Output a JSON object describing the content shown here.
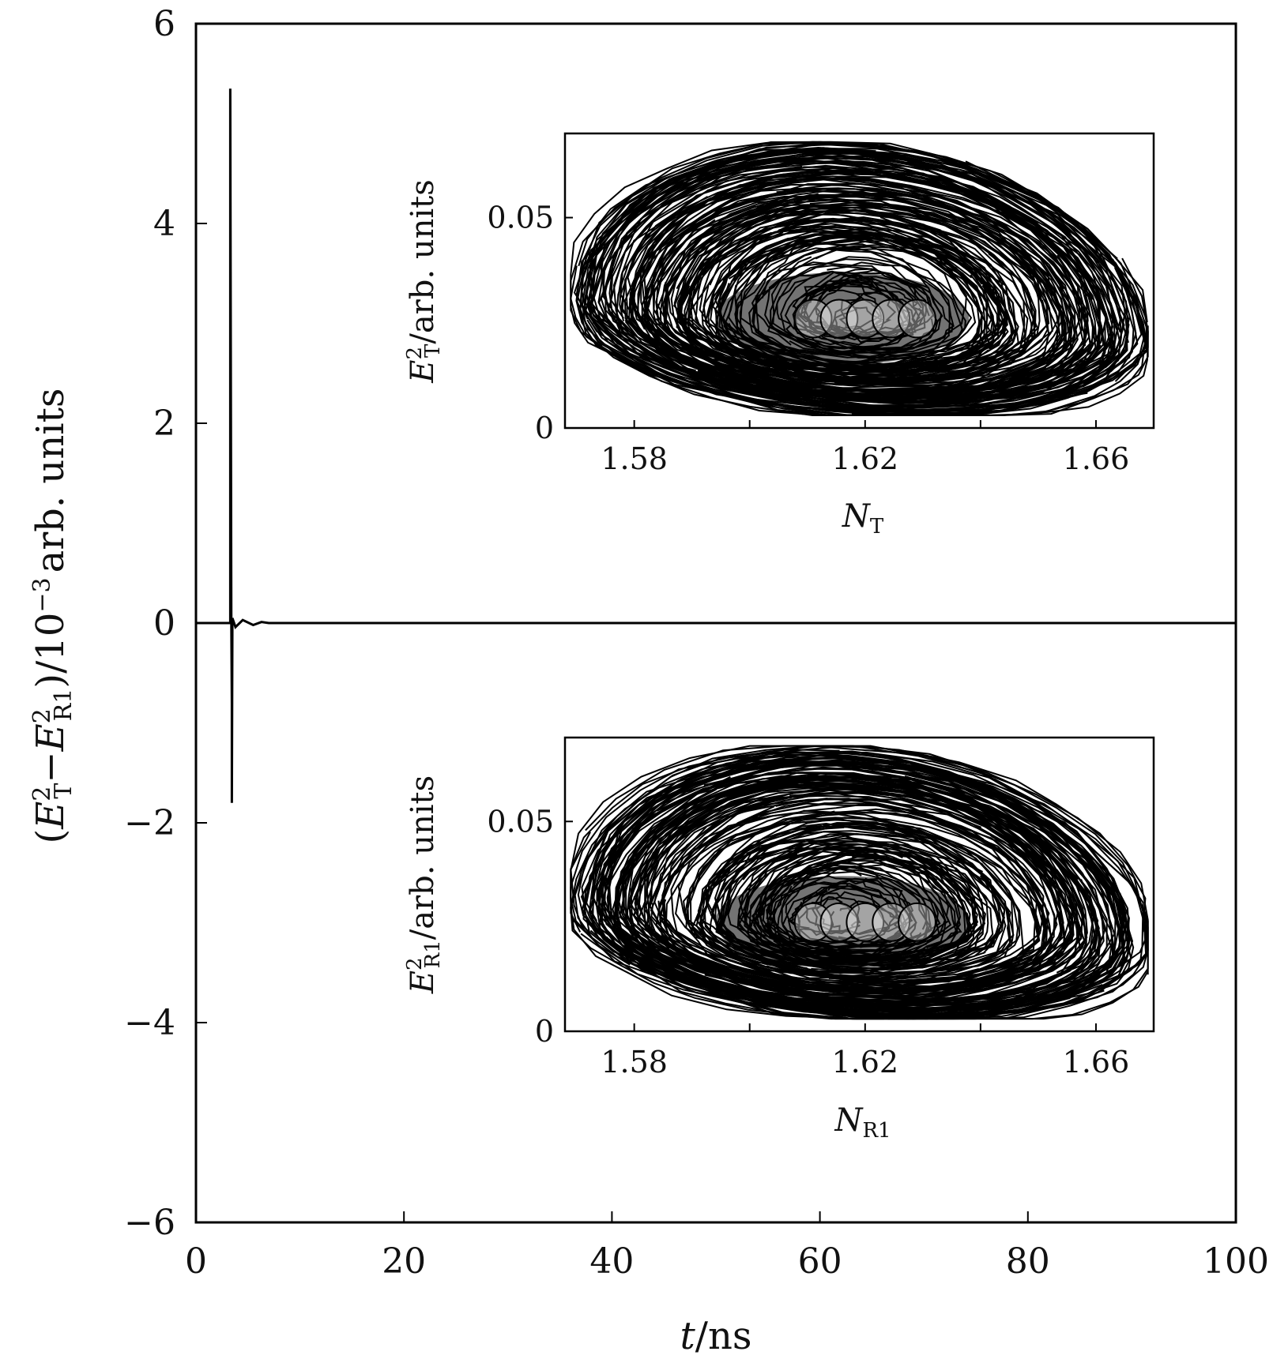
{
  "chart_data": [
    {
      "type": "line",
      "role": "main",
      "xlabel": {
        "var": "t",
        "unit": "/ns"
      },
      "ylabel": {
        "prefix": "(",
        "e": "E",
        "sup": "2",
        "subT": "T",
        "minus": "−",
        "subR": "R1",
        "suffix": ")/10",
        "exp": "−3",
        "unit": "arb. units"
      },
      "xlim": [
        0,
        100
      ],
      "ylim": [
        -6,
        6
      ],
      "x_ticks": [
        0,
        20,
        40,
        60,
        80,
        100
      ],
      "x_tick_labels": [
        "0",
        "20",
        "40",
        "60",
        "80",
        "100"
      ],
      "y_ticks": [
        -6,
        -4,
        -2,
        0,
        2,
        4,
        6
      ],
      "y_tick_labels": [
        "−6",
        "−4",
        "−2",
        "0",
        "2",
        "4",
        "6"
      ],
      "series": [
        {
          "name": "(E_T^2 - E_R1^2)",
          "x": [
            0,
            3.3,
            3.3,
            3.4,
            3.45,
            3.45,
            3.5,
            3.8,
            4.5,
            5.5,
            6.3,
            7.0,
            100
          ],
          "y": [
            0,
            0,
            5.35,
            0.1,
            -0.8,
            -1.8,
            0.05,
            -0.04,
            0.03,
            -0.02,
            0.01,
            0,
            0
          ]
        }
      ]
    },
    {
      "type": "line",
      "role": "inset-top",
      "xlabel": {
        "var": "N",
        "sub": "T"
      },
      "ylabel": {
        "e": "E",
        "sup": "2",
        "sub": "T",
        "unit": "/arb. units"
      },
      "xlim": [
        1.568,
        1.67
      ],
      "ylim": [
        0,
        0.07
      ],
      "x_ticks": [
        1.58,
        1.62,
        1.66
      ],
      "x_tick_labels": [
        "1.58",
        "1.62",
        "1.66"
      ],
      "y_ticks": [
        0,
        0.05
      ],
      "y_tick_labels": [
        "0",
        "0.05"
      ],
      "attractor": {
        "center_n": 1.618,
        "center_e": 0.026,
        "min_n": 1.569,
        "max_n": 1.669,
        "min_e": 0.003,
        "max_e": 0.068
      }
    },
    {
      "type": "line",
      "role": "inset-bottom",
      "xlabel": {
        "var": "N",
        "sub": "R1"
      },
      "ylabel": {
        "e": "E",
        "sup": "2",
        "sub": "R1",
        "unit": "/arb. units"
      },
      "xlim": [
        1.568,
        1.67
      ],
      "ylim": [
        0,
        0.07
      ],
      "x_ticks": [
        1.58,
        1.62,
        1.66
      ],
      "x_tick_labels": [
        "1.58",
        "1.62",
        "1.66"
      ],
      "y_ticks": [
        0,
        0.05
      ],
      "y_tick_labels": [
        "0",
        "0.05"
      ],
      "attractor": {
        "center_n": 1.618,
        "center_e": 0.026,
        "min_n": 1.569,
        "max_n": 1.669,
        "min_e": 0.003,
        "max_e": 0.068
      }
    }
  ]
}
